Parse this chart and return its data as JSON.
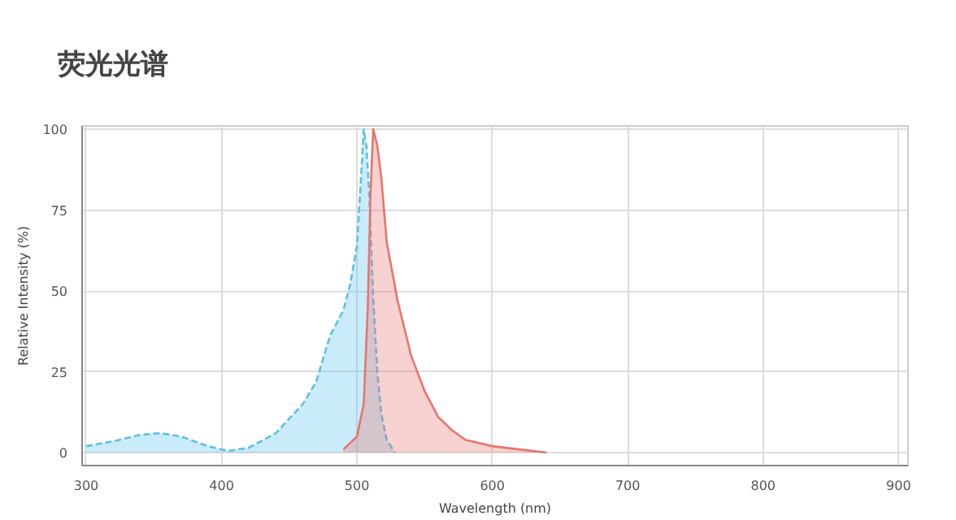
{
  "chart_data": {
    "type": "area",
    "title": "荧光光谱",
    "xlabel": "Wavelength (nm)",
    "ylabel": "Relative Intensity (%)",
    "xlim": [
      297,
      907
    ],
    "ylim": [
      -4,
      101
    ],
    "xticks": [
      300,
      400,
      500,
      600,
      700,
      800,
      900
    ],
    "yticks": [
      0,
      25,
      50,
      75,
      100
    ],
    "grid": true,
    "series": [
      {
        "color": "#5bc0eb",
        "line_style": "dashed",
        "x": [
          300,
          320,
          340,
          355,
          370,
          390,
          405,
          420,
          440,
          460,
          470,
          480,
          490,
          495,
          500,
          503,
          505,
          507,
          509,
          512,
          515,
          518,
          522,
          528
        ],
        "values": [
          2,
          3.5,
          5.5,
          6,
          5,
          2,
          0.5,
          1.5,
          6,
          15,
          22,
          36,
          44,
          52,
          64,
          85,
          100,
          95,
          80,
          48,
          25,
          12,
          4,
          0
        ]
      },
      {
        "color": "#e8746d",
        "line_style": "solid",
        "x": [
          490,
          500,
          505,
          508,
          510,
          512,
          515,
          518,
          522,
          530,
          540,
          550,
          560,
          570,
          580,
          600,
          620,
          640
        ],
        "values": [
          1,
          5,
          15,
          45,
          80,
          100,
          95,
          85,
          65,
          47,
          30,
          19,
          11,
          7,
          4,
          2,
          1,
          0
        ]
      }
    ]
  }
}
